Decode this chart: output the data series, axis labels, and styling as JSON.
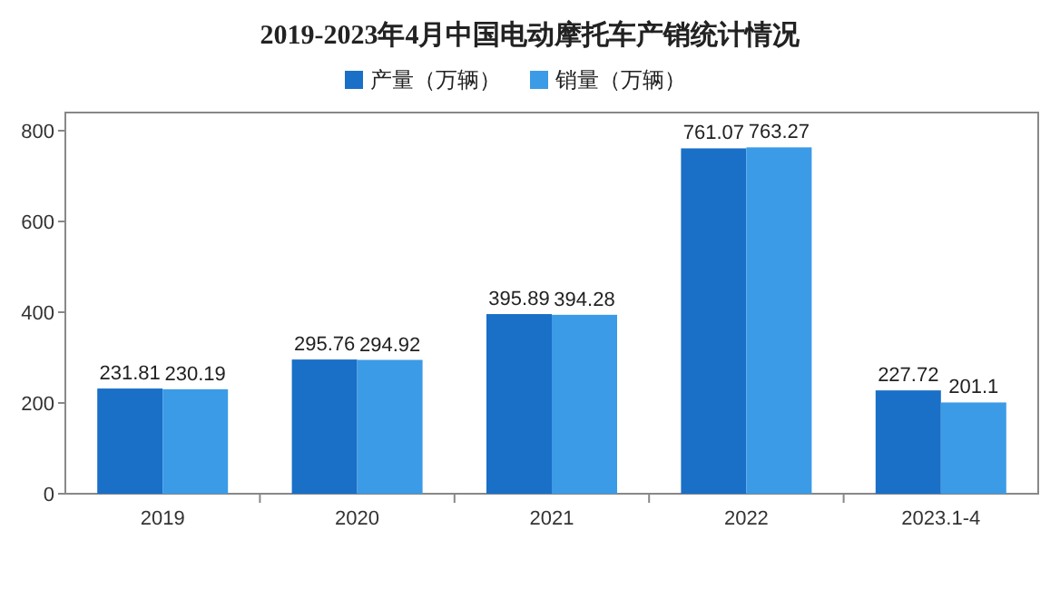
{
  "chart_data": {
    "type": "bar",
    "title": "2019-2023年4月中国电动摩托车产销统计情况",
    "categories": [
      "2019",
      "2020",
      "2021",
      "2022",
      "2023.1-4"
    ],
    "series": [
      {
        "name": "产量（万辆）",
        "color": "#1a6fc7",
        "values": [
          231.81,
          295.76,
          395.89,
          761.07,
          227.72
        ]
      },
      {
        "name": "销量（万辆）",
        "color": "#3b9be6",
        "values": [
          230.19,
          294.92,
          394.28,
          763.27,
          201.1
        ]
      }
    ],
    "ylim": [
      0,
      840
    ],
    "yticks": [
      0,
      200,
      400,
      600,
      800
    ],
    "grid": false,
    "legend": "top",
    "data_labels": true
  }
}
